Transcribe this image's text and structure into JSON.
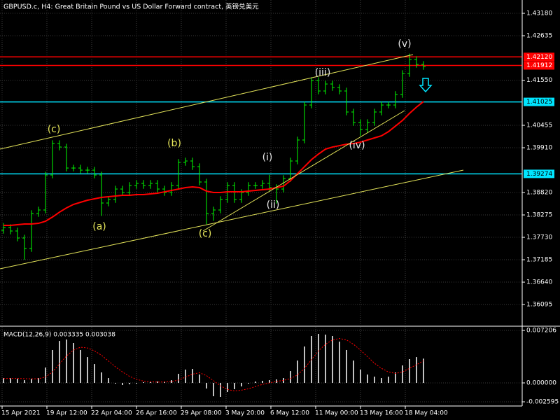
{
  "chart_data": [
    {
      "type": "ohlc",
      "title": "GBPUSD.c, H4:  Great Britain Pound vs US Dollar Forward contract, 英镑兑美元",
      "color": "#00ff00",
      "ylim": [
        1.35585,
        1.43504
      ],
      "yticks": [
        {
          "value": 1.4318,
          "label": "1.43180"
        },
        1.42635,
        {
          "value": 1.4155,
          "label": "1.41550"
        },
        1.40455,
        {
          "value": 1.3991,
          "label": "1.39910"
        },
        {
          "value": 1.3882,
          "label": "1.38820"
        },
        1.38275,
        {
          "value": 1.3773,
          "label": "1.37730"
        },
        1.37185,
        {
          "value": 1.3664,
          "label": "1.36640"
        },
        1.36095
      ],
      "xlim": [
        -0.5,
        74
      ],
      "xticks": [
        {
          "value": -0.2,
          "label": "15 Apr 2021"
        },
        {
          "value": 6.2,
          "label": "19 Apr 12:00"
        },
        {
          "value": 12.6,
          "label": "22 Apr 04:00"
        },
        {
          "value": 19.0,
          "label": "26 Apr 16:00"
        },
        {
          "value": 25.4,
          "label": "29 Apr 08:00"
        },
        {
          "value": 31.8,
          "label": "3 May 20:00"
        },
        {
          "value": 38.2,
          "label": "6 May 12:00"
        },
        {
          "value": 44.6,
          "label": "11 May 00:00"
        },
        {
          "value": 51.0,
          "label": "13 May 16:00"
        },
        {
          "value": 57.4,
          "label": "18 May 04:00"
        }
      ],
      "grid": true,
      "open": [
        1.379,
        1.37969,
        1.37884,
        1.37713,
        1.37458,
        1.38309,
        1.38395,
        1.39246,
        1.40012,
        1.39927,
        1.39416,
        1.39416,
        1.39365,
        1.39365,
        1.39246,
        1.38565,
        1.3865,
        1.38905,
        1.3882,
        1.38991,
        1.39042,
        1.38991,
        1.39042,
        1.38905,
        1.3882,
        1.38991,
        1.39553,
        1.39587,
        1.3945,
        1.39076,
        1.38309,
        1.38395,
        1.3865,
        1.38991,
        1.3865,
        1.3882,
        1.38991,
        1.38991,
        1.39042,
        1.3894,
        1.38905,
        1.39161,
        1.39587,
        1.40098,
        1.40949,
        1.41545,
        1.4129,
        1.4146,
        1.41375,
        1.4129,
        1.40779,
        1.40523,
        1.40353,
        1.40523,
        1.40779,
        1.40949,
        1.40949,
        1.41205,
        1.41715,
        1.42056,
        1.41937
      ],
      "high": [
        1.38077,
        1.38049,
        1.37964,
        1.37793,
        1.38389,
        1.38475,
        1.39326,
        1.40092,
        1.4009,
        1.40007,
        1.39496,
        1.39496,
        1.39445,
        1.39445,
        1.39326,
        1.3873,
        1.38985,
        1.38985,
        1.39071,
        1.39122,
        1.39122,
        1.39122,
        1.39122,
        1.38985,
        1.39071,
        1.39633,
        1.39667,
        1.39667,
        1.3953,
        1.39156,
        1.38475,
        1.3873,
        1.39071,
        1.39071,
        1.389,
        1.39071,
        1.39071,
        1.39122,
        1.3925,
        1.3902,
        1.39241,
        1.39667,
        1.40178,
        1.41029,
        1.41625,
        1.41625,
        1.4154,
        1.4154,
        1.41455,
        1.4137,
        1.40859,
        1.40603,
        1.40603,
        1.40859,
        1.41029,
        1.41029,
        1.41285,
        1.41795,
        1.422,
        1.42136,
        1.42017
      ],
      "low": [
        1.3782,
        1.37804,
        1.37633,
        1.37185,
        1.37378,
        1.38229,
        1.38315,
        1.39166,
        1.39847,
        1.39336,
        1.39336,
        1.39285,
        1.39285,
        1.39166,
        1.3825,
        1.38485,
        1.3857,
        1.3874,
        1.3874,
        1.38911,
        1.38911,
        1.38911,
        1.38825,
        1.3874,
        1.3874,
        1.38911,
        1.39473,
        1.3937,
        1.38996,
        1.3805,
        1.3813,
        1.38315,
        1.3857,
        1.3857,
        1.3857,
        1.3874,
        1.38911,
        1.38911,
        1.3886,
        1.3855,
        1.38825,
        1.39081,
        1.39507,
        1.40018,
        1.40869,
        1.4121,
        1.4121,
        1.41295,
        1.4121,
        1.40699,
        1.40443,
        1.402,
        1.40273,
        1.40443,
        1.40699,
        1.40869,
        1.40869,
        1.41125,
        1.41635,
        1.41857,
        1.41806
      ],
      "close": [
        1.37969,
        1.37884,
        1.37713,
        1.37458,
        1.38309,
        1.38395,
        1.39246,
        1.40012,
        1.39927,
        1.39416,
        1.39416,
        1.39365,
        1.39365,
        1.39246,
        1.38565,
        1.3865,
        1.38905,
        1.3882,
        1.38991,
        1.39042,
        1.38991,
        1.39042,
        1.38905,
        1.3882,
        1.38991,
        1.39553,
        1.39587,
        1.3945,
        1.39076,
        1.38309,
        1.38395,
        1.3865,
        1.38991,
        1.3865,
        1.3882,
        1.38991,
        1.38991,
        1.39042,
        1.3894,
        1.38905,
        1.39161,
        1.39587,
        1.40098,
        1.40949,
        1.41545,
        1.4129,
        1.4146,
        1.41375,
        1.4129,
        1.40779,
        1.40523,
        1.40353,
        1.40523,
        1.40779,
        1.40949,
        1.40949,
        1.41205,
        1.41715,
        1.42056,
        1.41937,
        1.41886
      ],
      "series": [
        {
          "color": "#ff0000",
          "values": [
            1.3802,
            1.3802,
            1.38037,
            1.38054,
            1.38054,
            1.38071,
            1.38122,
            1.38224,
            1.38343,
            1.38446,
            1.38531,
            1.38582,
            1.38633,
            1.38667,
            1.38701,
            1.38718,
            1.38735,
            1.38752,
            1.38752,
            1.38769,
            1.38769,
            1.38786,
            1.38803,
            1.38837,
            1.38871,
            1.38905,
            1.3894,
            1.38957,
            1.3894,
            1.38854,
            1.3882,
            1.3882,
            1.38837,
            1.38837,
            1.38837,
            1.38854,
            1.38871,
            1.38888,
            1.38905,
            1.3894,
            1.38974,
            1.3911,
            1.3928,
            1.3945,
            1.39621,
            1.39757,
            1.39876,
            1.39927,
            1.39961,
            1.39995,
            1.40012,
            1.40046,
            1.40098,
            1.40149,
            1.402,
            1.40302,
            1.40438,
            1.40574,
            1.40745,
            1.40898,
            1.41034
          ]
        }
      ],
      "hlines": [
        {
          "value": 1.4212,
          "label": "1.42120",
          "color": "#ff0000",
          "text_color": "#ffffff"
        },
        {
          "value": 1.41912,
          "label": "1.41912",
          "color": "#ff0000",
          "text_color": "#ffffff"
        },
        {
          "value": 1.41025,
          "label": "1.41025",
          "color": "#00e5ff",
          "text_color": "#000000"
        },
        {
          "value": 1.39274,
          "label": "1.39274",
          "color": "#00e5ff",
          "text_color": "#000000"
        }
      ],
      "annotations": [
        "(c)",
        "(b)",
        "(a)",
        "(c)",
        "(i)",
        "(ii)",
        "(iii)",
        "(iv)",
        "(v)"
      ]
    },
    {
      "type": "macd",
      "title": "MACD(12,26,9) 0.003335 0.003038",
      "ylim": [
        -0.00317,
        0.00769
      ],
      "yticks": [
        0.007206,
        {
          "value": 0,
          "label": "0.000000"
        },
        -0.002595
      ],
      "series": [
        {
          "color": "#c0c0c0",
          "values": [
            0.00067,
            0.00067,
            0.00058,
            0.00038,
            0.00058,
            0.00067,
            0.00211,
            0.00452,
            0.00576,
            0.00596,
            0.00548,
            0.00452,
            0.00355,
            0.00259,
            0.00144,
            0.00067,
            -0.0001,
            -0.00029,
            -0.00019,
            -0.0001,
            0.0001,
            0.00019,
            0.00019,
            0.00019,
            0.00038,
            0.00125,
            0.00183,
            0.00192,
            0.00115,
            -0.00077,
            -0.00183,
            -0.00192,
            -0.00125,
            -0.00086,
            -0.00048,
            -0.0001,
            0.00019,
            0.00029,
            0.00038,
            0.00048,
            0.00067,
            0.00163,
            0.00307,
            0.005,
            0.00644,
            0.00673,
            0.00663,
            0.00644,
            0.00567,
            0.00452,
            0.00307,
            0.00183,
            0.00115,
            0.00086,
            0.00067,
            0.00086,
            0.00144,
            0.0024,
            0.00327,
            0.00355,
            0.003335
          ]
        },
        {
          "color": "#ff0000",
          "values": [
            0.0006,
            0.00062,
            0.00062,
            0.00058,
            0.00056,
            0.00058,
            0.0008,
            0.0015,
            0.0026,
            0.0037,
            0.0045,
            0.0049,
            0.0048,
            0.0044,
            0.0038,
            0.003,
            0.0022,
            0.0015,
            0.0009,
            0.0005,
            0.00025,
            0.00015,
            0.00012,
            0.00013,
            0.00018,
            0.0004,
            0.0008,
            0.0012,
            0.0014,
            0.001,
            0.0003,
            -0.0004,
            -0.0009,
            -0.0011,
            -0.001,
            -0.0008,
            -0.0005,
            -0.0002,
            0,
            0.0002,
            0.00035,
            0.0006,
            0.0011,
            0.002,
            0.0032,
            0.0044,
            0.0053,
            0.0059,
            0.0061,
            0.0059,
            0.0053,
            0.0045,
            0.0036,
            0.0027,
            0.002,
            0.0015,
            0.0013,
            0.0015,
            0.002,
            0.0025,
            0.003038
          ]
        }
      ]
    }
  ]
}
